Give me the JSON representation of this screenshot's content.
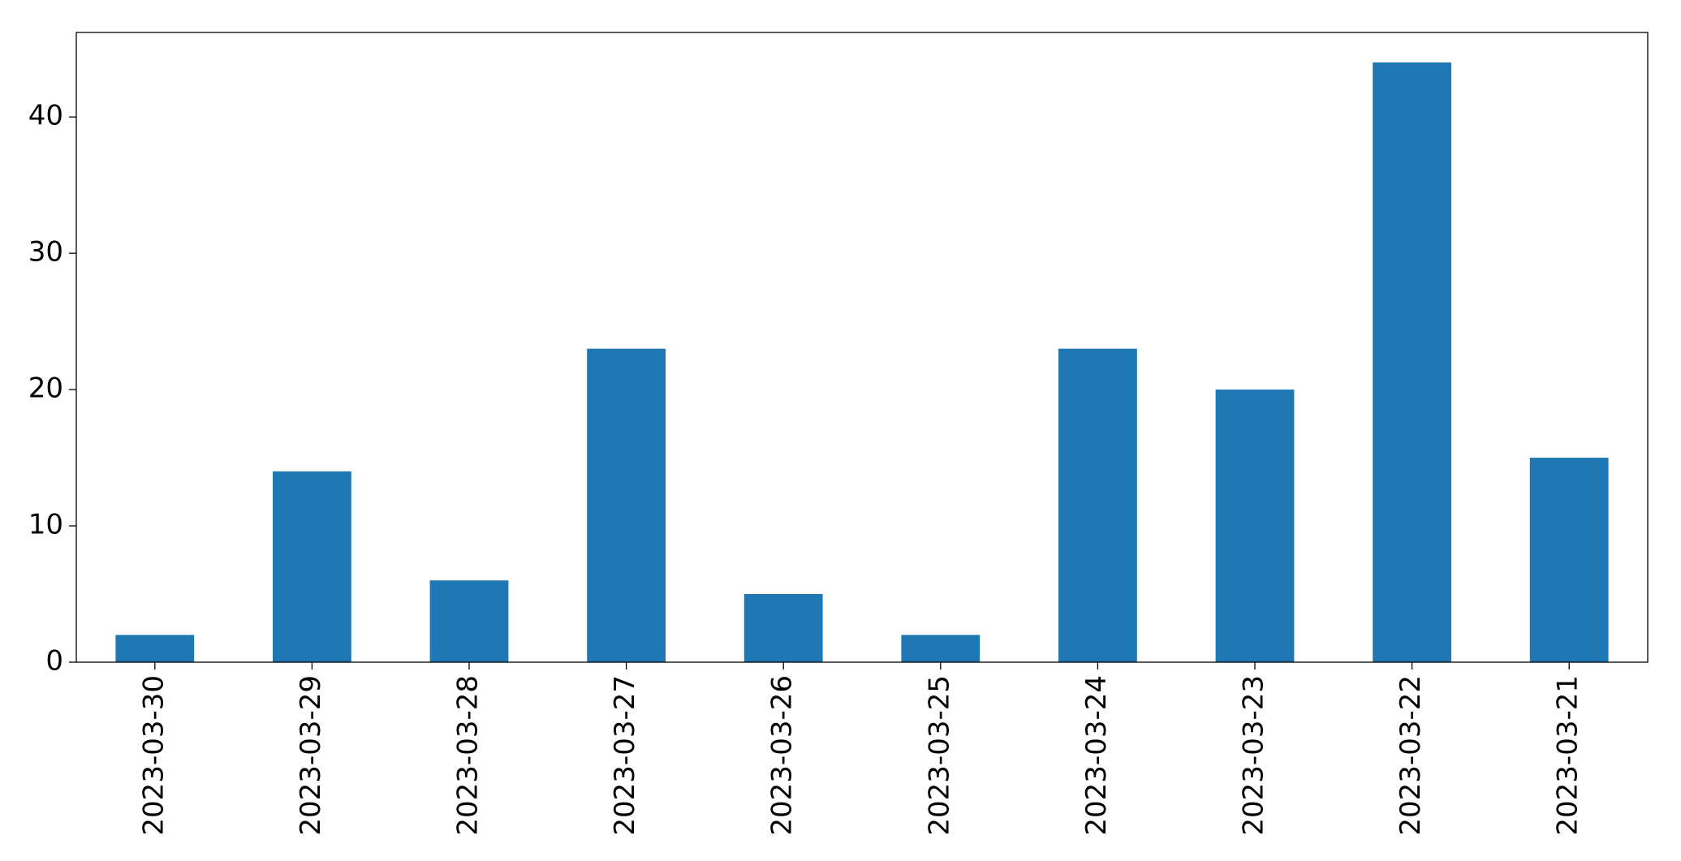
{
  "chart_data": {
    "type": "bar",
    "categories": [
      "2023-03-30",
      "2023-03-29",
      "2023-03-28",
      "2023-03-27",
      "2023-03-26",
      "2023-03-25",
      "2023-03-24",
      "2023-03-23",
      "2023-03-22",
      "2023-03-21"
    ],
    "values": [
      2,
      14,
      6,
      23,
      5,
      2,
      23,
      20,
      44,
      15
    ],
    "color": "#1f77b4",
    "ylim": [
      0,
      46.2
    ],
    "yticks": [
      0,
      10,
      20,
      30,
      40
    ],
    "grid": false
  }
}
